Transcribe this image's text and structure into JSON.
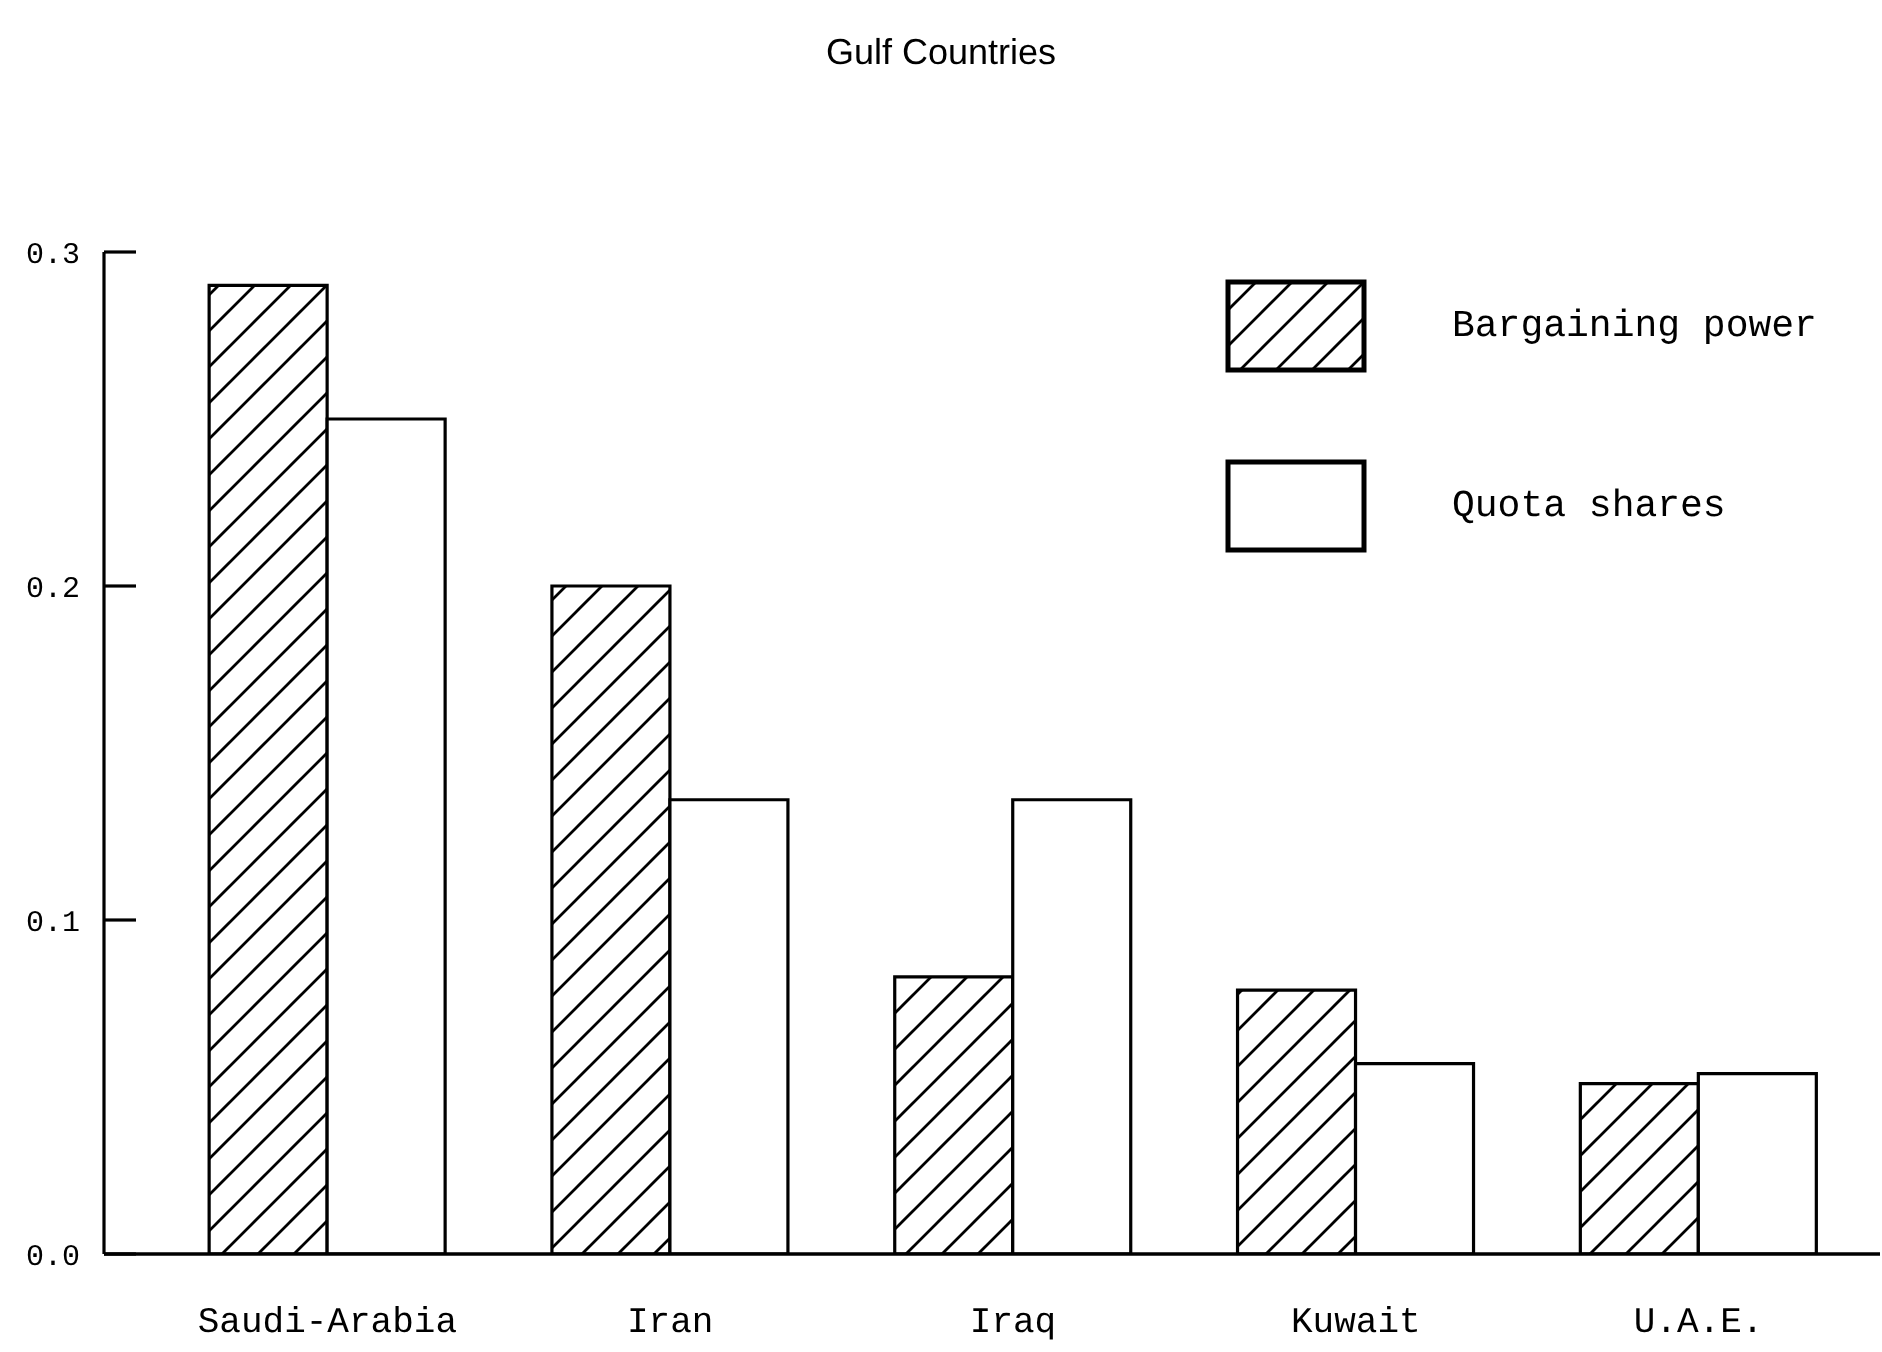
{
  "chart_data": {
    "type": "bar",
    "title": "Gulf Countries",
    "categories": [
      "Saudi-Arabia",
      "Iran",
      "Iraq",
      "Kuwait",
      "U.A.E."
    ],
    "series": [
      {
        "name": "Bargaining power",
        "color": "#000000",
        "values": [
          0.29,
          0.2,
          0.083,
          0.079,
          0.051
        ]
      },
      {
        "name": "Quota shares",
        "color": "#ffffff",
        "values": [
          0.25,
          0.136,
          0.136,
          0.057,
          0.054
        ]
      }
    ],
    "ylim": [
      0,
      0.3
    ],
    "yticks": [
      {
        "value": 0,
        "label": "0.0"
      },
      0.1,
      0.2,
      0.3
    ],
    "legend": "top right"
  }
}
